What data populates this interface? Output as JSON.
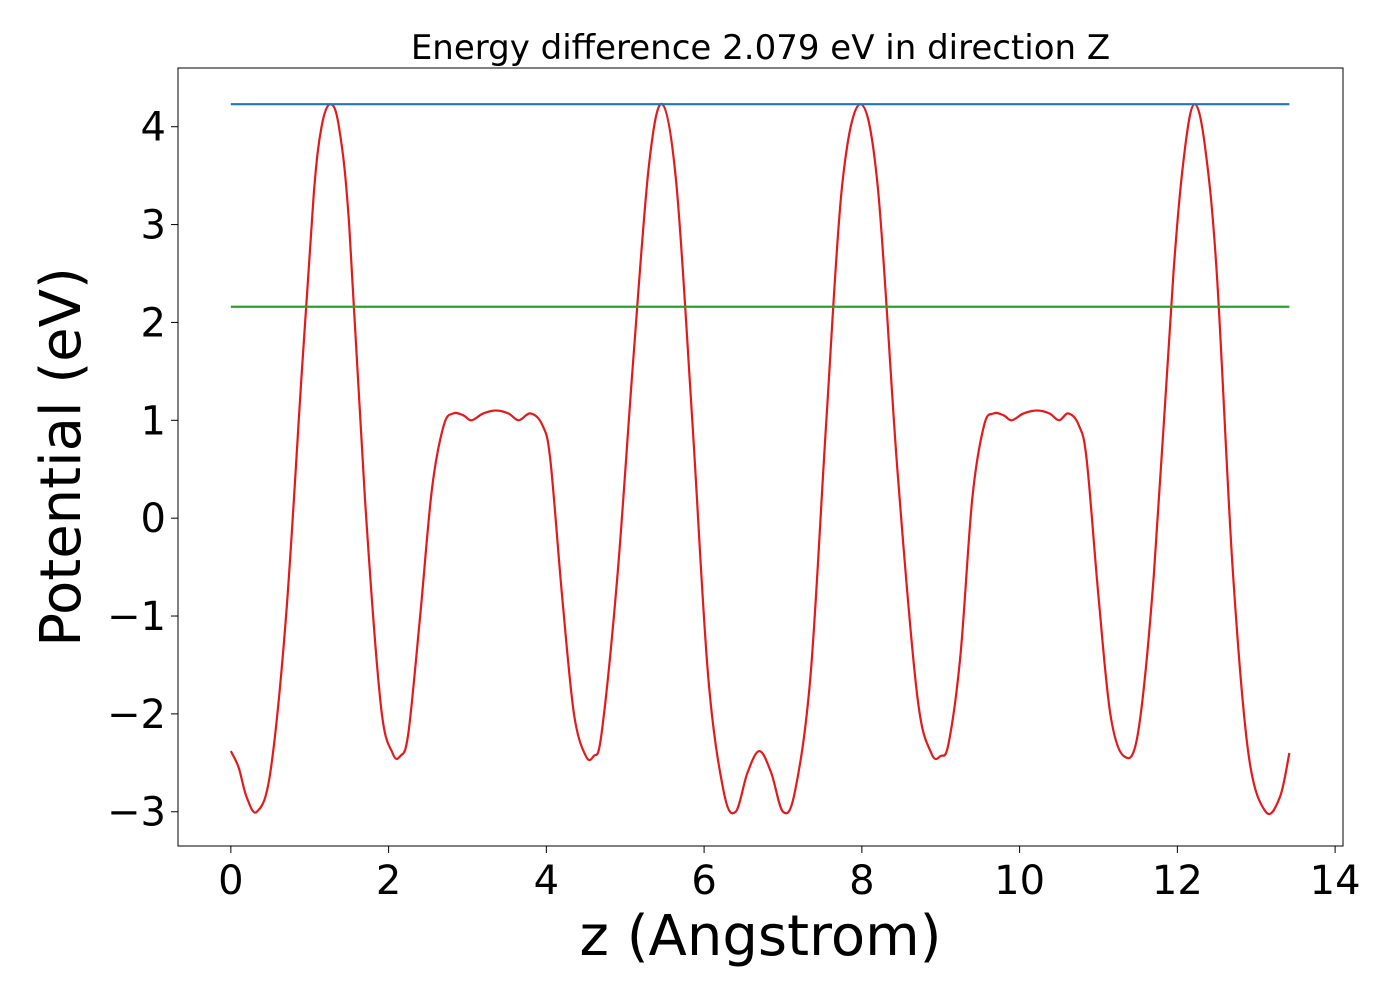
{
  "chart_data": {
    "type": "line",
    "title": "Energy difference 2.079 eV in direction Z",
    "xlabel": "z (Angstrom)",
    "ylabel": "Potential (eV)",
    "xlim": [
      -0.67,
      14.1
    ],
    "ylim": [
      -3.35,
      4.6
    ],
    "xticks": [
      0,
      2,
      4,
      6,
      8,
      10,
      12,
      14
    ],
    "xtick_labels": [
      "0",
      "2",
      "4",
      "6",
      "8",
      "10",
      "12",
      "14"
    ],
    "yticks": [
      -3,
      -2,
      -1,
      0,
      1,
      2,
      3,
      4
    ],
    "ytick_labels": [
      "−3",
      "−2",
      "−1",
      "0",
      "1",
      "2",
      "3",
      "4"
    ],
    "grid": false,
    "legend": "none",
    "series": [
      {
        "color": "#e31a1c",
        "style": "curve",
        "x": [
          0.0,
          0.1,
          0.2,
          0.33,
          0.5,
          0.7,
          0.9,
          1.05,
          1.15,
          1.26,
          1.37,
          1.5,
          1.7,
          1.9,
          2.05,
          2.15,
          2.25,
          2.4,
          2.55,
          2.7,
          2.82,
          2.95,
          3.05,
          3.2,
          3.36,
          3.52,
          3.65,
          3.8,
          3.95,
          4.05,
          4.2,
          4.35,
          4.5,
          4.6,
          4.7,
          4.9,
          5.1,
          5.3,
          5.47,
          5.65,
          5.85,
          6.05,
          6.25,
          6.4,
          6.55,
          6.7,
          6.85,
          7.0,
          7.15,
          7.35,
          7.55,
          7.75,
          7.98,
          8.2,
          8.45,
          8.7,
          8.88,
          9.0,
          9.1,
          9.25,
          9.4,
          9.55,
          9.67,
          9.8,
          9.9,
          10.05,
          10.22,
          10.38,
          10.5,
          10.62,
          10.75,
          10.85,
          11.0,
          11.15,
          11.32,
          11.5,
          11.7,
          11.95,
          12.1,
          12.22,
          12.35,
          12.5,
          12.7,
          12.9,
          13.12,
          13.3,
          13.42
        ],
        "y": [
          -2.38,
          -2.55,
          -2.85,
          -3.0,
          -2.6,
          -1.0,
          1.5,
          3.3,
          4.0,
          4.23,
          4.0,
          3.0,
          0.2,
          -1.9,
          -2.4,
          -2.43,
          -2.2,
          -1.0,
          0.3,
          0.95,
          1.07,
          1.05,
          1.0,
          1.07,
          1.1,
          1.07,
          1.0,
          1.07,
          0.95,
          0.6,
          -0.8,
          -2.0,
          -2.43,
          -2.43,
          -2.2,
          -0.6,
          1.6,
          3.6,
          4.23,
          3.4,
          1.0,
          -1.6,
          -2.8,
          -3.0,
          -2.6,
          -2.38,
          -2.6,
          -3.0,
          -2.8,
          -1.6,
          1.0,
          3.4,
          4.23,
          3.4,
          0.5,
          -1.8,
          -2.4,
          -2.43,
          -2.3,
          -1.4,
          0.2,
          0.95,
          1.07,
          1.05,
          1.0,
          1.07,
          1.1,
          1.07,
          1.0,
          1.07,
          0.95,
          0.6,
          -0.8,
          -2.0,
          -2.43,
          -2.2,
          -0.6,
          2.5,
          3.8,
          4.23,
          3.8,
          2.5,
          -0.5,
          -2.4,
          -3.0,
          -2.85,
          -2.4
        ]
      },
      {
        "color": "#1f77b4",
        "style": "line",
        "x": [
          0,
          13.42
        ],
        "y": [
          4.23,
          4.23
        ]
      },
      {
        "color": "#2ca02c",
        "style": "line",
        "x": [
          0,
          13.42
        ],
        "y": [
          2.16,
          2.16
        ]
      }
    ]
  }
}
